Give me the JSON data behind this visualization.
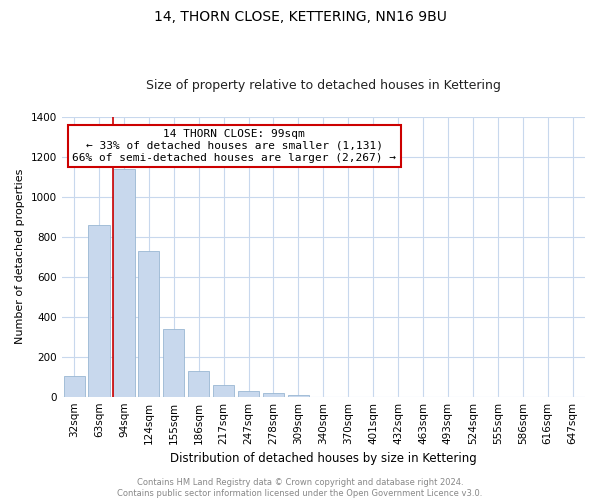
{
  "title": "14, THORN CLOSE, KETTERING, NN16 9BU",
  "subtitle": "Size of property relative to detached houses in Kettering",
  "xlabel": "Distribution of detached houses by size in Kettering",
  "ylabel": "Number of detached properties",
  "bar_labels": [
    "32sqm",
    "63sqm",
    "94sqm",
    "124sqm",
    "155sqm",
    "186sqm",
    "217sqm",
    "247sqm",
    "278sqm",
    "309sqm",
    "340sqm",
    "370sqm",
    "401sqm",
    "432sqm",
    "463sqm",
    "493sqm",
    "524sqm",
    "555sqm",
    "586sqm",
    "616sqm",
    "647sqm"
  ],
  "bar_values": [
    105,
    860,
    1140,
    730,
    340,
    130,
    60,
    30,
    18,
    10,
    0,
    0,
    0,
    0,
    0,
    0,
    0,
    0,
    0,
    0,
    0
  ],
  "bar_color": "#c8d8ed",
  "bar_edge_color": "#9ab7d3",
  "ylim": [
    0,
    1400
  ],
  "yticks": [
    0,
    200,
    400,
    600,
    800,
    1000,
    1200,
    1400
  ],
  "property_line_color": "#cc0000",
  "annotation_line1": "14 THORN CLOSE: 99sqm",
  "annotation_line2": "← 33% of detached houses are smaller (1,131)",
  "annotation_line3": "66% of semi-detached houses are larger (2,267) →",
  "annotation_box_color": "#ffffff",
  "annotation_box_edge": "#cc0000",
  "footer_line1": "Contains HM Land Registry data © Crown copyright and database right 2024.",
  "footer_line2": "Contains public sector information licensed under the Open Government Licence v3.0.",
  "footer_color": "#888888",
  "background_color": "#ffffff",
  "grid_color": "#c8d8ed",
  "title_fontsize": 10,
  "subtitle_fontsize": 9,
  "xlabel_fontsize": 8.5,
  "ylabel_fontsize": 8,
  "tick_fontsize": 7.5,
  "annotation_fontsize": 8,
  "footer_fontsize": 6
}
